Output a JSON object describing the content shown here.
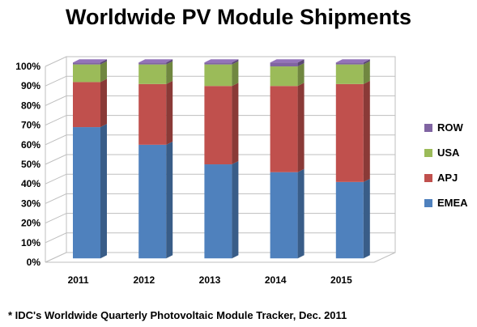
{
  "chart_data": {
    "type": "bar",
    "stacked": true,
    "percent": true,
    "three_d": true,
    "title": "Worldwide PV Module Shipments",
    "categories": [
      "2011",
      "2012",
      "2013",
      "2014",
      "2015"
    ],
    "series": [
      {
        "name": "EMEA",
        "color": "#4f81bd",
        "values": [
          67,
          58,
          48,
          44,
          39
        ]
      },
      {
        "name": "APJ",
        "color": "#c0504d",
        "values": [
          23,
          31,
          40,
          44,
          50
        ]
      },
      {
        "name": "USA",
        "color": "#9bbb59",
        "values": [
          9,
          10,
          11,
          10,
          10
        ]
      },
      {
        "name": "ROW",
        "color": "#8064a2",
        "values": [
          1,
          1,
          1,
          2,
          1
        ]
      }
    ],
    "yticks": [
      "0%",
      "10%",
      "20%",
      "30%",
      "40%",
      "50%",
      "60%",
      "70%",
      "80%",
      "90%",
      "100%"
    ],
    "ylim": [
      0,
      100
    ],
    "legend_position": "right",
    "grid": true
  },
  "footnote": "* IDC's Worldwide Quarterly Photovoltaic Module Tracker, Dec. 2011"
}
